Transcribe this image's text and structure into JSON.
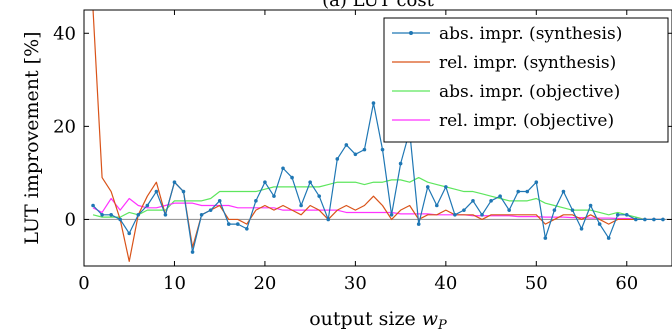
{
  "chart_data": {
    "type": "line",
    "title": "(a) LUT cost",
    "xlabel": "output size w_P",
    "ylabel": "LUT improvement [%]",
    "xlim": [
      0,
      65
    ],
    "ylim": [
      -10,
      45
    ],
    "xticks": [
      0,
      10,
      20,
      30,
      40,
      50,
      60
    ],
    "yticks": [
      0,
      20,
      40
    ],
    "grid": false,
    "legend_position": "top-right",
    "colors": {
      "abs_synthesis": "#1f77b4",
      "rel_synthesis": "#d95319",
      "abs_objective": "#5ee65e",
      "rel_objective": "#ff33ff",
      "zero_line": "#9a9a9a"
    },
    "series": [
      {
        "name": "abs. impr. (synthesis)",
        "key": "abs_synthesis",
        "marker": true,
        "x": [
          1,
          2,
          3,
          4,
          5,
          6,
          7,
          8,
          9,
          10,
          11,
          12,
          13,
          14,
          15,
          16,
          17,
          18,
          19,
          20,
          21,
          22,
          23,
          24,
          25,
          26,
          27,
          28,
          29,
          30,
          31,
          32,
          33,
          34,
          35,
          36,
          37,
          38,
          39,
          40,
          41,
          42,
          43,
          44,
          45,
          46,
          47,
          48,
          49,
          50,
          51,
          52,
          53,
          54,
          55,
          56,
          57,
          58,
          59,
          60,
          61,
          62,
          63,
          64
        ],
        "y": [
          3,
          1,
          1,
          0,
          -3,
          1,
          3,
          6,
          1,
          8,
          6,
          -7,
          1,
          2,
          4,
          -1,
          -1,
          -2,
          4,
          8,
          5,
          11,
          9,
          3,
          8,
          5,
          0,
          13,
          16,
          14,
          15,
          25,
          15,
          1,
          12,
          19,
          -1,
          7,
          3,
          7,
          1,
          2,
          4,
          1,
          4,
          5,
          2,
          6,
          6,
          8,
          -4,
          2,
          6,
          2,
          -2,
          3,
          -1,
          -4,
          1,
          1,
          0,
          0,
          0,
          0
        ]
      },
      {
        "name": "rel. impr. (synthesis)",
        "key": "rel_synthesis",
        "marker": false,
        "x": [
          1,
          2,
          3,
          4,
          5,
          6,
          7,
          8,
          9,
          10,
          11,
          12,
          13,
          14,
          15,
          16,
          17,
          18,
          19,
          20,
          21,
          22,
          23,
          24,
          25,
          26,
          27,
          28,
          29,
          30,
          31,
          32,
          33,
          34,
          35,
          36,
          37,
          38,
          39,
          40,
          41,
          42,
          43,
          44,
          45,
          46,
          47,
          48,
          49,
          50,
          51,
          52,
          53,
          54,
          55,
          56,
          57,
          58,
          59,
          60,
          61,
          62,
          63,
          64
        ],
        "y": [
          45,
          9,
          6,
          0,
          -9,
          1,
          5,
          8,
          1,
          8,
          6,
          -6,
          1,
          2,
          3,
          0,
          0,
          -1,
          2,
          3,
          2,
          3,
          2,
          1,
          3,
          2,
          0,
          2,
          3,
          2,
          3,
          5,
          3,
          0,
          2,
          3,
          0,
          1,
          1,
          2,
          1,
          1,
          1,
          0,
          1,
          1,
          1,
          1,
          1,
          1,
          -1,
          0,
          1,
          1,
          0,
          1,
          0,
          -1,
          0,
          0,
          0,
          0,
          0,
          0
        ]
      },
      {
        "name": "abs. impr. (objective)",
        "key": "abs_objective",
        "marker": false,
        "x": [
          1,
          2,
          3,
          4,
          5,
          6,
          7,
          8,
          9,
          10,
          11,
          12,
          13,
          14,
          15,
          16,
          17,
          18,
          19,
          20,
          21,
          22,
          23,
          24,
          25,
          26,
          27,
          28,
          29,
          30,
          31,
          32,
          33,
          34,
          35,
          36,
          37,
          38,
          39,
          40,
          41,
          42,
          43,
          44,
          45,
          46,
          47,
          48,
          49,
          50,
          51,
          52,
          53,
          54,
          55,
          56,
          57,
          58,
          59,
          60,
          61,
          62,
          63,
          64
        ],
        "y": [
          1,
          0.5,
          0.5,
          0.5,
          1.5,
          1,
          2,
          2,
          2,
          4,
          4,
          4,
          4,
          4.5,
          6,
          6,
          6,
          6,
          6,
          6.5,
          7,
          7,
          7,
          7,
          7,
          7,
          7.5,
          8,
          8,
          8,
          7.5,
          8,
          8,
          8.5,
          8.5,
          8,
          9,
          8,
          7.5,
          7,
          6.5,
          6,
          6,
          5.5,
          5,
          4.5,
          4,
          4,
          4,
          4.5,
          3.5,
          3,
          2.5,
          2,
          2,
          2,
          1.5,
          1,
          1.5,
          1,
          0.5,
          0,
          0,
          0
        ]
      },
      {
        "name": "rel. impr. (objective)",
        "key": "rel_objective",
        "marker": false,
        "x": [
          1,
          2,
          3,
          4,
          5,
          6,
          7,
          8,
          9,
          10,
          11,
          12,
          13,
          14,
          15,
          16,
          17,
          18,
          19,
          20,
          21,
          22,
          23,
          24,
          25,
          26,
          27,
          28,
          29,
          30,
          31,
          32,
          33,
          34,
          35,
          36,
          37,
          38,
          39,
          40,
          41,
          42,
          43,
          44,
          45,
          46,
          47,
          48,
          49,
          50,
          51,
          52,
          53,
          54,
          55,
          56,
          57,
          58,
          59,
          60,
          61,
          62,
          63,
          64
        ],
        "y": [
          2.5,
          1.5,
          4.5,
          2,
          4.5,
          3,
          2.5,
          2.5,
          3,
          3.5,
          3.5,
          3.5,
          3,
          3,
          3,
          3,
          2.5,
          2.5,
          2.5,
          2.5,
          2.5,
          2,
          2,
          2,
          2,
          2,
          2,
          2,
          1.5,
          1.5,
          1.5,
          1.5,
          1.5,
          1.5,
          1.2,
          1.2,
          1.2,
          1.2,
          1,
          1,
          1,
          1,
          0.8,
          0.8,
          0.8,
          0.8,
          0.8,
          0.6,
          0.6,
          0.6,
          0.5,
          0.5,
          0.5,
          0.4,
          0.4,
          0.3,
          0.3,
          0.3,
          0.2,
          0.2,
          0.1,
          0,
          0,
          0
        ]
      }
    ]
  }
}
